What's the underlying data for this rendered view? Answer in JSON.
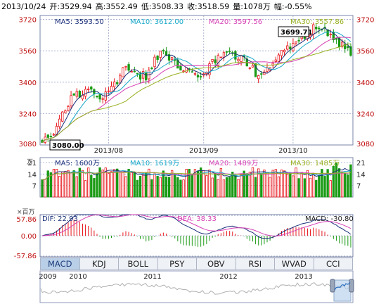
{
  "header": {
    "date": "2013/10/24",
    "open": "开:3529.94",
    "high": "高:3552.49",
    "low": "低:3508.33",
    "close": "收:3518.59",
    "volume": "量:1078万",
    "change": "幅:-0.55%"
  },
  "main_legend": {
    "ma5": "MA5: 3593.50",
    "ma10": "MA10: 3612.00",
    "ma20": "MA20: 3597.56",
    "ma30": "MA30: 3557.86"
  },
  "vol_legend": {
    "ma5": "MA5: 1600万",
    "ma10": "MA10: 1619万",
    "ma20": "MA20: 1489万",
    "ma30": "MA30: 1485万"
  },
  "macd_legend": {
    "dif": "DIF: 22.93",
    "dea": "DEA: 38.33",
    "macd": "MACD: -30.80"
  },
  "price_callouts": {
    "high": "3699.71",
    "low": "3080.00"
  },
  "tabs": [
    "MACD",
    "KDJ",
    "BOLL",
    "PSY",
    "OBV",
    "RSI",
    "WVAD",
    "CCI"
  ],
  "active_tab": "MACD",
  "overview_years": [
    "2009",
    "2010",
    "2011",
    "2012",
    "2013"
  ],
  "colors": {
    "up": "#e8141a",
    "down": "#1a9a14",
    "ma5": "#1a2f7a",
    "ma10": "#18a8c8",
    "ma20": "#d640b4",
    "ma30": "#98b020",
    "grid": "#9aa7c7",
    "axis_label": "#c01010"
  },
  "chart_data": [
    {
      "type": "candlestick",
      "name": "price",
      "y_ticks": [
        3080,
        3240,
        3400,
        3560,
        3720
      ],
      "ylim": [
        3080,
        3740
      ],
      "x_labels": [
        {
          "label": "2013/08",
          "index": 23
        },
        {
          "label": "2013/09",
          "index": 56
        },
        {
          "label": "2013/10",
          "index": 87
        }
      ],
      "high": 3699.71,
      "low": 3080.0,
      "series_names": [
        "MA5",
        "MA10",
        "MA20",
        "MA30"
      ]
    },
    {
      "type": "bar",
      "name": "volume",
      "unit": "万",
      "y_ticks": [
        7,
        14,
        21
      ],
      "ylim": [
        0,
        24
      ]
    },
    {
      "type": "bar",
      "name": "macd",
      "unit": "×百万",
      "y_ticks": [
        57.86,
        0.0,
        -57.86
      ],
      "ylim": [
        -60,
        60
      ]
    }
  ]
}
